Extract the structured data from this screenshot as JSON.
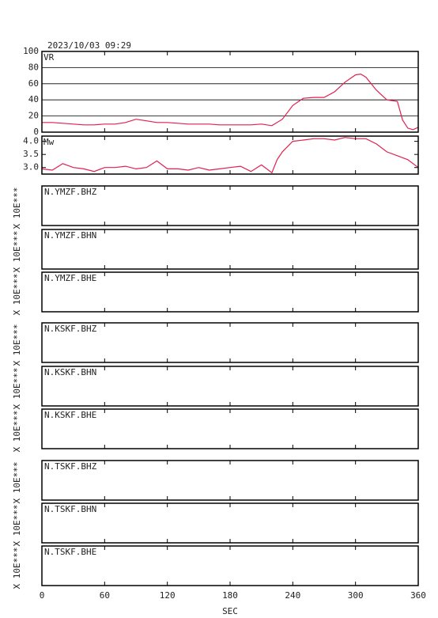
{
  "title": "2023/10/03 09:29",
  "chart_data": [
    {
      "type": "line",
      "ylabel": "VR",
      "color": "#e0204f",
      "x": [
        0,
        10,
        20,
        30,
        40,
        50,
        60,
        70,
        80,
        90,
        100,
        110,
        120,
        130,
        140,
        150,
        160,
        170,
        180,
        190,
        200,
        210,
        220,
        230,
        240,
        250,
        260,
        270,
        280,
        290,
        300,
        305,
        310,
        320,
        330,
        340,
        345,
        350,
        355,
        360
      ],
      "values": [
        12,
        12,
        11,
        10,
        9,
        9,
        10,
        10,
        12,
        16,
        14,
        12,
        12,
        11,
        10,
        10,
        10,
        9,
        9,
        9,
        9,
        10,
        8,
        16,
        33,
        42,
        43,
        43,
        50,
        62,
        71,
        72,
        68,
        52,
        40,
        38,
        15,
        5,
        3,
        6
      ],
      "xlim": [
        0,
        360
      ],
      "ylim": [
        0,
        100
      ],
      "yticks": [
        0,
        20,
        40,
        60,
        80,
        100
      ],
      "grid": true
    },
    {
      "type": "line",
      "ylabel": "Mw",
      "color": "#e0204f",
      "x": [
        0,
        10,
        20,
        30,
        40,
        50,
        60,
        70,
        80,
        90,
        100,
        110,
        120,
        130,
        140,
        150,
        160,
        170,
        180,
        190,
        200,
        210,
        220,
        225,
        230,
        240,
        250,
        260,
        270,
        280,
        290,
        300,
        310,
        320,
        330,
        340,
        350,
        360
      ],
      "values": [
        2.95,
        2.9,
        3.15,
        3.0,
        2.95,
        2.85,
        3.0,
        3.0,
        3.05,
        2.95,
        3.0,
        3.25,
        2.95,
        2.95,
        2.9,
        3.0,
        2.9,
        2.95,
        3.0,
        3.05,
        2.85,
        3.1,
        2.8,
        3.3,
        3.6,
        4.0,
        4.05,
        4.1,
        4.1,
        4.05,
        4.15,
        4.1,
        4.1,
        3.9,
        3.6,
        3.45,
        3.3,
        3.0
      ],
      "xlim": [
        0,
        360
      ],
      "ylim": [
        2.75,
        4.2
      ],
      "yticks": [
        {
          "value": 3,
          "label": "3.0"
        },
        3.5,
        {
          "value": 4,
          "label": "4.0"
        }
      ],
      "grid": false
    }
  ],
  "stations": [
    {
      "name": "N.YMZF.BHZ",
      "unit_label": "X 10E***"
    },
    {
      "name": "N.YMZF.BHN",
      "unit_label": "X 10E***"
    },
    {
      "name": "N.YMZF.BHE",
      "unit_label": "X 10E***"
    },
    {
      "name": "N.KSKF.BHZ",
      "unit_label": "X 10E***"
    },
    {
      "name": "N.KSKF.BHN",
      "unit_label": "X 10E***"
    },
    {
      "name": "N.KSKF.BHE",
      "unit_label": "X 10E***"
    },
    {
      "name": "N.TSKF.BHZ",
      "unit_label": "X 10E***"
    },
    {
      "name": "N.TSKF.BHN",
      "unit_label": "X 10E***"
    },
    {
      "name": "N.TSKF.BHE",
      "unit_label": "X 10E***"
    }
  ],
  "time_axis": {
    "xlabel": "SEC",
    "xlim": [
      0,
      360
    ],
    "xticks": [
      0,
      60,
      120,
      180,
      240,
      300,
      360
    ]
  }
}
